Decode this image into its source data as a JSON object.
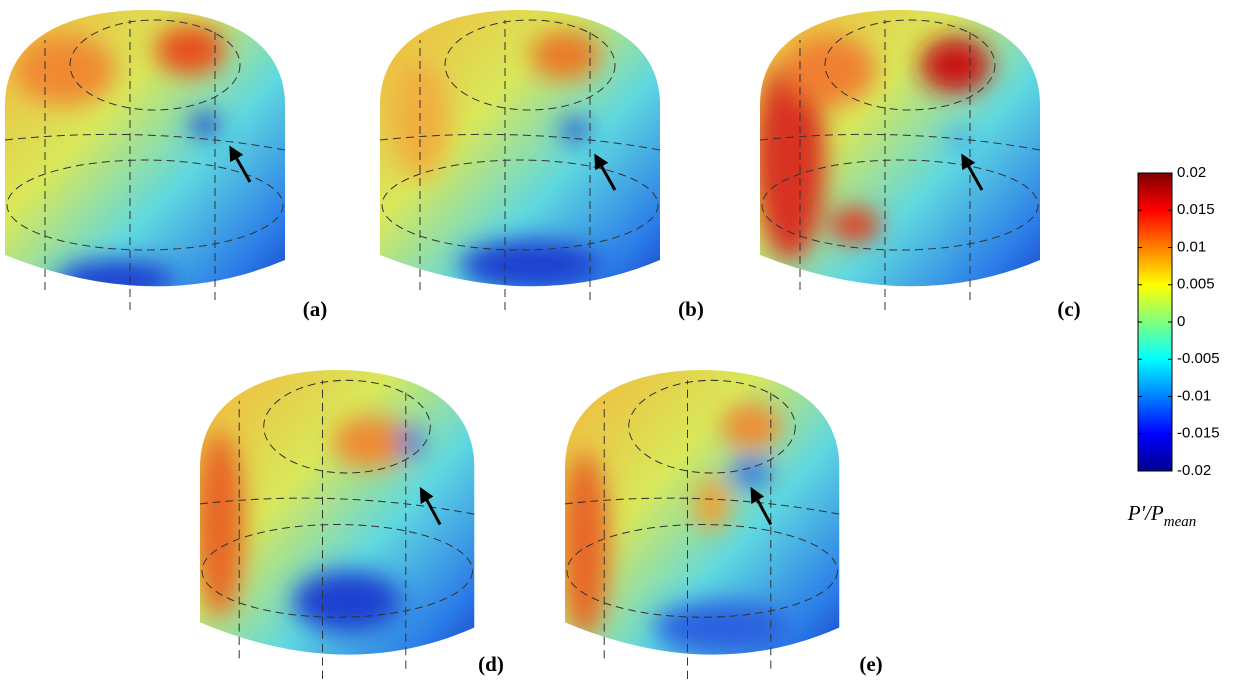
{
  "panels": [
    {
      "label": "(a)"
    },
    {
      "label": "(b)"
    },
    {
      "label": "(c)"
    },
    {
      "label": "(d)"
    },
    {
      "label": "(e)"
    }
  ],
  "colorbar": {
    "clim": [
      -0.02,
      0.02
    ],
    "ticks": [
      0.02,
      0.015,
      0.01,
      0.005,
      0,
      -0.005,
      -0.01,
      -0.015,
      -0.02
    ],
    "label": {
      "main": "P'/P",
      "sub": "mean"
    }
  }
}
